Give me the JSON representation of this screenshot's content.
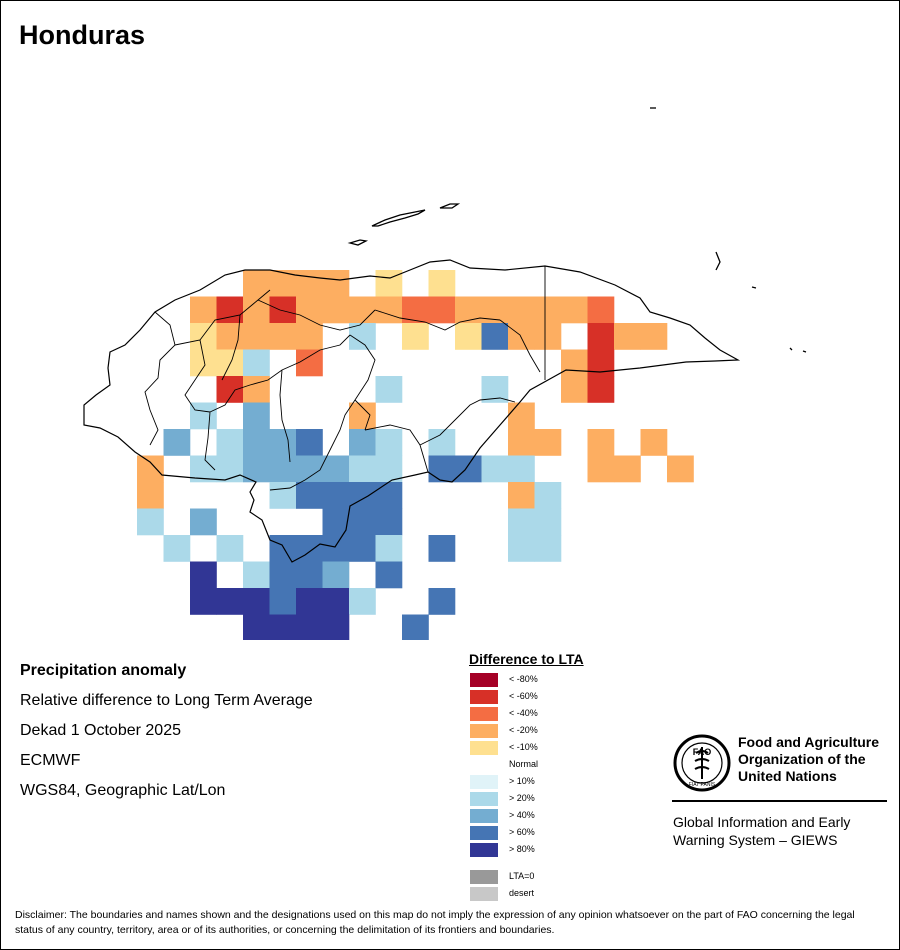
{
  "title": "Honduras",
  "info": {
    "heading": "Precipitation anomaly",
    "subtitle": "Relative difference to Long Term Average",
    "period": "Dekad 1 October 2025",
    "model": "ECMWF",
    "projection": "WGS84, Geographic Lat/Lon"
  },
  "legend": {
    "title": "Difference to LTA",
    "items": [
      {
        "label": "< -80%",
        "color": "#a50026"
      },
      {
        "label": "< -60%",
        "color": "#d73027"
      },
      {
        "label": "< -40%",
        "color": "#f46d43"
      },
      {
        "label": "< -20%",
        "color": "#fdae61"
      },
      {
        "label": "< -10%",
        "color": "#fee090"
      },
      {
        "label": "Normal",
        "color": "#ffffff"
      },
      {
        "label": "> 10%",
        "color": "#e0f3f8"
      },
      {
        "label": "> 20%",
        "color": "#abd9e9"
      },
      {
        "label": "> 40%",
        "color": "#74add1"
      },
      {
        "label": "> 60%",
        "color": "#4575b4"
      },
      {
        "label": "> 80%",
        "color": "#313695"
      }
    ],
    "extra": [
      {
        "label": "LTA=0",
        "color": "#999999"
      },
      {
        "label": "desert",
        "color": "#c8c8c8"
      }
    ]
  },
  "org": {
    "name_line1": "Food and Agriculture",
    "name_line2": "Organization of the",
    "name_line3": "United Nations",
    "logo_text": "FAO",
    "logo_motto": "FIAT PANIS",
    "system_line1": "Global Information and Early",
    "system_line2": "Warning System – GIEWS"
  },
  "disclaimer": "Disclaimer: The boundaries and names shown and the designations used on this map do not imply the expression of any opinion whatsoever on the part of FAO concerning the legal status of any country, territory, area or of its authorities, or concerning the delimitation of its frontiers and boundaries.",
  "map_grid": {
    "row_start": 0,
    "cols": 24,
    "rows": [
      "......3333.4.4....",
      "....3232333355333335....",
      "....43333.7.4.4933.233..",
      "....447.5.........32...",
      ".....23....7...7..32...",
      "....7.8...3.....3.....",
      "...8.7889.87.7..33.3.3",
      "..3.77888877.9977..33.3",
      "..3....79999....37....",
      "..7.8....999....77.....",
      "...7.7.99997.9..77....",
      "....A.7998.9.........",
      "....AAA9AA7..9..........",
      "......AAAA..9.........",
      "........AAAA.8.........",
      ".........AAAA..........",
      ".........AAA...........",
      ".........A............."
    ]
  }
}
